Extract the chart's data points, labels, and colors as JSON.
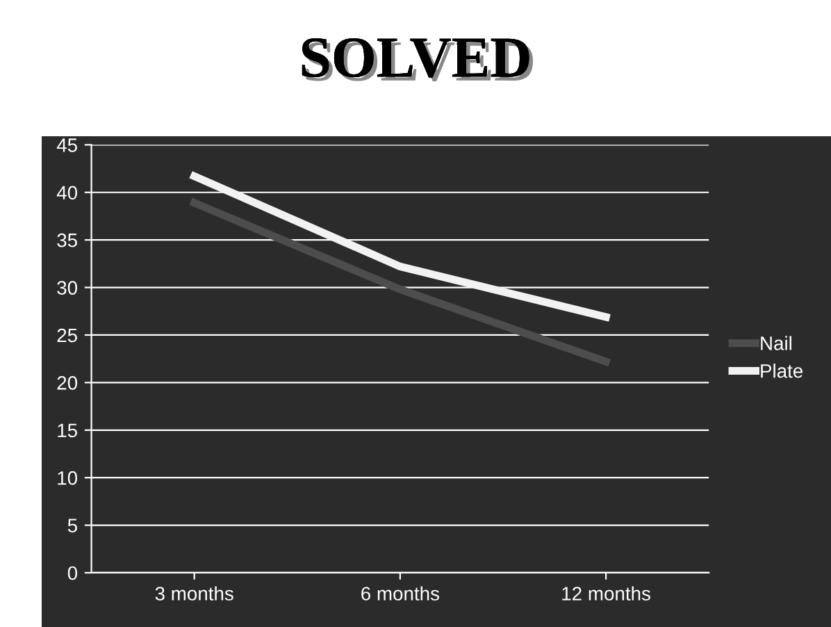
{
  "chart_data": {
    "type": "line",
    "title": "SOLVED",
    "categories": [
      "3 months",
      "6 months",
      "12 months"
    ],
    "series": [
      {
        "name": "Nail",
        "color": "#4d4d4d",
        "values": [
          38.9,
          29.8,
          22.2
        ]
      },
      {
        "name": "Plate",
        "color": "#f2f2f2",
        "values": [
          41.7,
          32.2,
          26.9
        ]
      }
    ],
    "ylim": [
      0,
      45
    ],
    "yticks": [
      0,
      5,
      10,
      15,
      20,
      25,
      30,
      35,
      40,
      45
    ],
    "grid": "y",
    "legend": "right",
    "marker": "none",
    "line_style": "solid"
  }
}
